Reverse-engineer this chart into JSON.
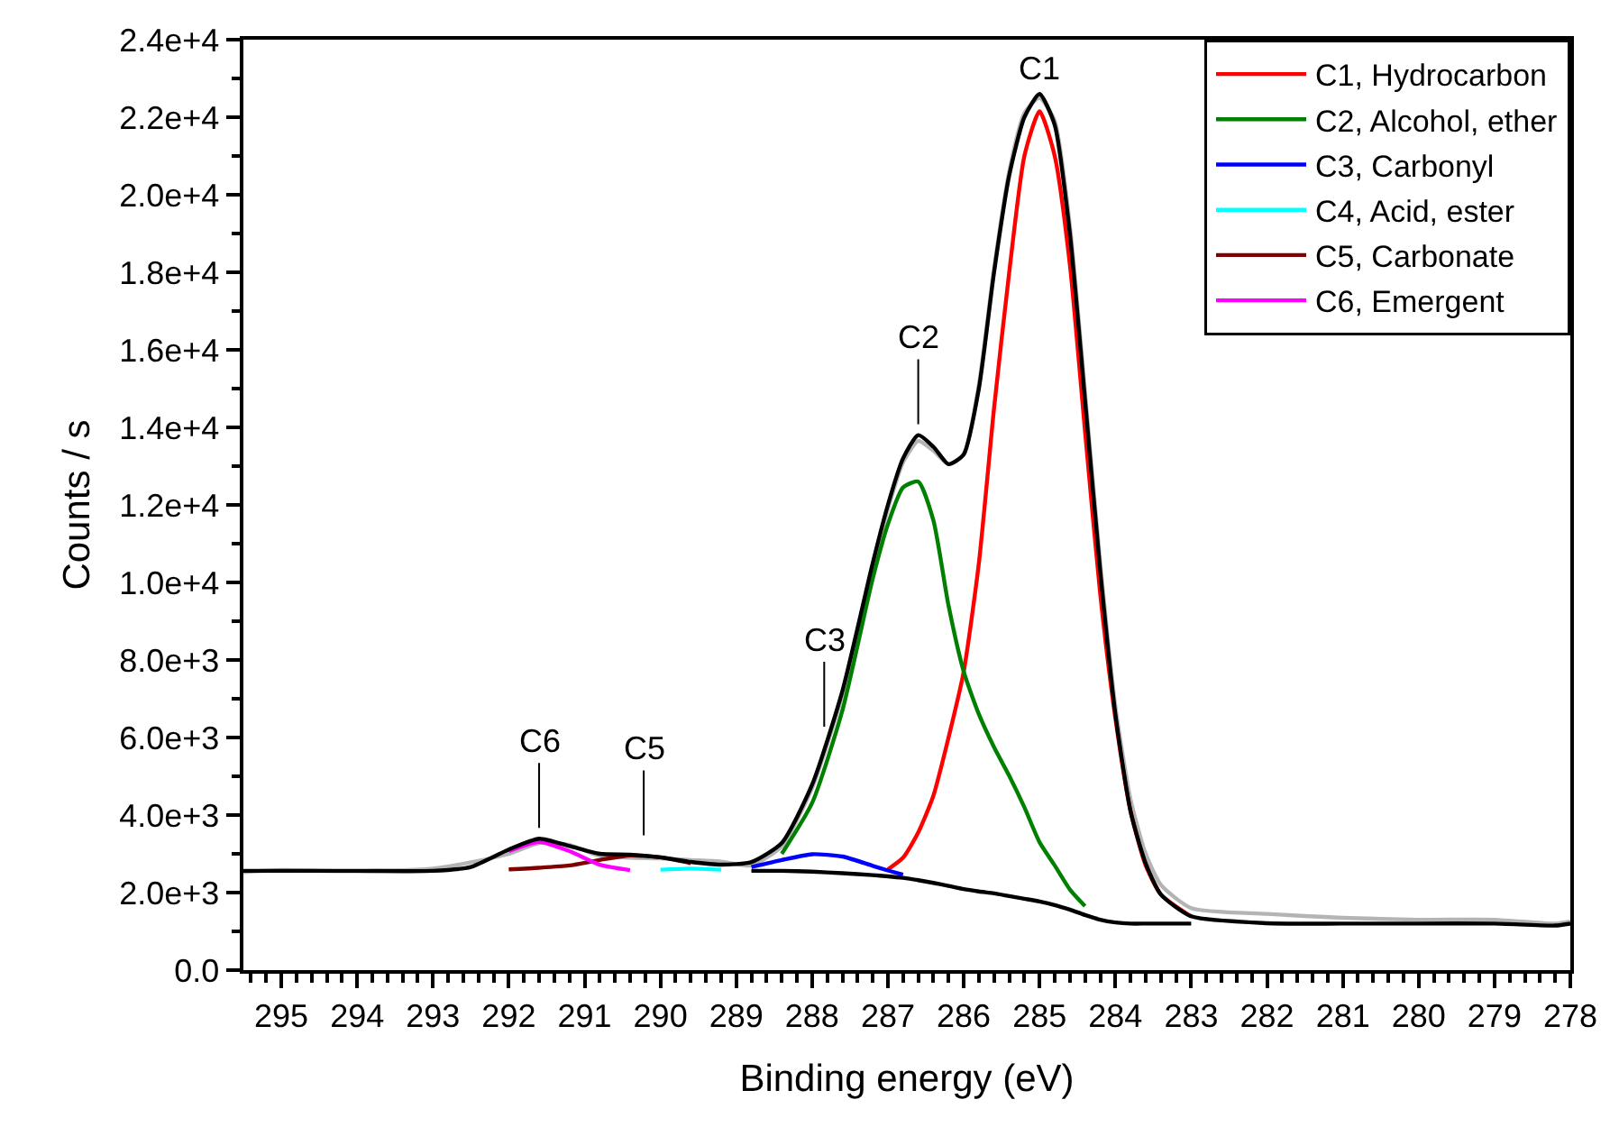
{
  "chart_data": {
    "type": "line",
    "xlabel": "Binding energy (eV)",
    "ylabel": "Counts / s",
    "x": [
      295.5,
      295,
      294,
      293,
      292.5,
      292,
      291.6,
      291.2,
      290.8,
      290.4,
      290,
      289.6,
      289.2,
      288.8,
      288.4,
      288,
      287.6,
      287.2,
      287,
      286.8,
      286.6,
      286.4,
      286.2,
      286,
      285.8,
      285.6,
      285.4,
      285.2,
      285,
      284.8,
      284.6,
      284.4,
      284.2,
      284,
      283.8,
      283.6,
      283.4,
      283,
      282,
      281,
      280,
      279,
      278.2,
      278
    ],
    "series": [
      {
        "color": "#b4b4b4",
        "values": [
          2530,
          2580,
          2550,
          2620,
          2780,
          3000,
          3280,
          3230,
          2950,
          2900,
          2880,
          2840,
          2800,
          2700,
          3200,
          4700,
          7100,
          10400,
          11900,
          13100,
          13650,
          13400,
          13050,
          13300,
          15100,
          18100,
          20600,
          22100,
          22500,
          21900,
          19200,
          14900,
          10500,
          6800,
          4400,
          3000,
          2200,
          1600,
          1450,
          1350,
          1300,
          1300,
          1200,
          1250
        ]
      },
      {
        "color": "#000000",
        "values": [
          null,
          null,
          null,
          null,
          null,
          null,
          null,
          null,
          null,
          null,
          null,
          null,
          null,
          2560,
          2560,
          2540,
          2500,
          2450,
          2420,
          2380,
          2320,
          2250,
          2170,
          2090,
          2030,
          1980,
          1910,
          1840,
          1770,
          1680,
          1560,
          1420,
          1300,
          1230,
          1200,
          1200,
          1200,
          1200,
          null,
          null,
          null,
          null,
          null,
          null
        ]
      },
      {
        "name": "C1, Hydrocarbon",
        "color": "#ff0000",
        "values": [
          null,
          null,
          null,
          null,
          null,
          null,
          null,
          null,
          null,
          null,
          null,
          null,
          null,
          null,
          null,
          null,
          null,
          null,
          2600,
          2900,
          3550,
          4500,
          6000,
          7700,
          10500,
          14500,
          18000,
          21000,
          22150,
          21000,
          18200,
          13900,
          9700,
          6500,
          4100,
          2700,
          1950,
          1380,
          null,
          null,
          null,
          null,
          null,
          null
        ]
      },
      {
        "name": "C2, Alcohol, ether",
        "color": "#008000",
        "values": [
          null,
          null,
          null,
          null,
          null,
          null,
          null,
          null,
          null,
          null,
          null,
          null,
          null,
          null,
          3000,
          4310,
          6700,
          10100,
          11500,
          12450,
          12600,
          11600,
          9400,
          7700,
          6600,
          5750,
          5010,
          4200,
          3300,
          2700,
          2080,
          1650,
          null,
          null,
          null,
          null,
          null,
          null,
          null,
          null,
          null,
          null,
          null,
          null
        ]
      },
      {
        "name": "C3, Carbonyl",
        "color": "#0000ff",
        "values": [
          null,
          null,
          null,
          null,
          null,
          null,
          null,
          null,
          null,
          null,
          null,
          null,
          null,
          2660,
          2840,
          2990,
          2930,
          2690,
          2570,
          2460,
          null,
          null,
          null,
          null,
          null,
          null,
          null,
          null,
          null,
          null,
          null,
          null,
          null,
          null,
          null,
          null,
          null,
          null,
          null,
          null,
          null,
          null,
          null,
          null
        ]
      },
      {
        "name": "C4, Acid, ester",
        "color": "#00ffff",
        "values": [
          null,
          null,
          null,
          null,
          null,
          null,
          null,
          null,
          null,
          null,
          2590,
          2620,
          2590,
          null,
          null,
          null,
          null,
          null,
          null,
          null,
          null,
          null,
          null,
          null,
          null,
          null,
          null,
          null,
          null,
          null,
          null,
          null,
          null,
          null,
          null,
          null,
          null,
          null,
          null,
          null,
          null,
          null,
          null,
          null
        ]
      },
      {
        "name": "C5, Carbonate",
        "color": "#800000",
        "values": [
          null,
          null,
          null,
          null,
          null,
          2600,
          2640,
          2700,
          2840,
          2960,
          2910,
          2760,
          null,
          null,
          null,
          null,
          null,
          null,
          null,
          null,
          null,
          null,
          null,
          null,
          null,
          null,
          null,
          null,
          null,
          null,
          null,
          null,
          null,
          null,
          null,
          null,
          null,
          null,
          null,
          null,
          null,
          null,
          null,
          null
        ]
      },
      {
        "name": "C6, Emergent",
        "color": "#ff00ff",
        "values": [
          null,
          null,
          null,
          null,
          null,
          3070,
          3310,
          3070,
          2720,
          2580,
          null,
          null,
          null,
          null,
          null,
          null,
          null,
          null,
          null,
          null,
          null,
          null,
          null,
          null,
          null,
          null,
          null,
          null,
          null,
          null,
          null,
          null,
          null,
          null,
          null,
          null,
          null,
          null,
          null,
          null,
          null,
          null,
          null,
          null
        ]
      },
      {
        "color": "#000000",
        "values": [
          2560,
          2560,
          2560,
          2560,
          2660,
          3110,
          3390,
          3200,
          3000,
          2980,
          2910,
          2790,
          2720,
          2790,
          3280,
          4780,
          7200,
          10500,
          12000,
          13200,
          13800,
          13500,
          13050,
          13300,
          15000,
          18000,
          20500,
          22000,
          22600,
          21800,
          19000,
          14700,
          10300,
          6600,
          4100,
          2750,
          1950,
          1390,
          1210,
          1200,
          1200,
          1200,
          1150,
          1200
        ]
      }
    ],
    "xlim": [
      295.5,
      278
    ],
    "xticks": [
      295,
      294,
      293,
      292,
      291,
      290,
      289,
      288,
      287,
      286,
      285,
      284,
      283,
      282,
      281,
      280,
      279,
      278
    ],
    "ylim": [
      0,
      24000
    ],
    "yticks": [
      {
        "value": 0,
        "label": "0.0"
      },
      {
        "value": 2000,
        "label": "2.0e+3"
      },
      {
        "value": 4000,
        "label": "4.0e+3"
      },
      {
        "value": 6000,
        "label": "6.0e+3"
      },
      {
        "value": 8000,
        "label": "8.0e+3"
      },
      {
        "value": 10000,
        "label": "1.0e+4"
      },
      {
        "value": 12000,
        "label": "1.2e+4"
      },
      {
        "value": 14000,
        "label": "1.4e+4"
      },
      {
        "value": 16000,
        "label": "1.6e+4"
      },
      {
        "value": 18000,
        "label": "1.8e+4"
      },
      {
        "value": 20000,
        "label": "2.0e+4"
      },
      {
        "value": 22000,
        "label": "2.2e+4"
      },
      {
        "value": 24000,
        "label": "2.4e+4"
      }
    ],
    "annotations": [
      {
        "text": "C1",
        "x": 285,
        "y": 22600
      },
      {
        "text": "C2",
        "x": 286.6,
        "y": 13800
      },
      {
        "text": "C3",
        "x": 287.84,
        "y": 6000
      },
      {
        "text": "C5",
        "x": 290.22,
        "y": 3200
      },
      {
        "text": "C6",
        "x": 291.6,
        "y": 3390
      }
    ],
    "legend": "top right",
    "marker": "none",
    "line_style": "solid"
  }
}
